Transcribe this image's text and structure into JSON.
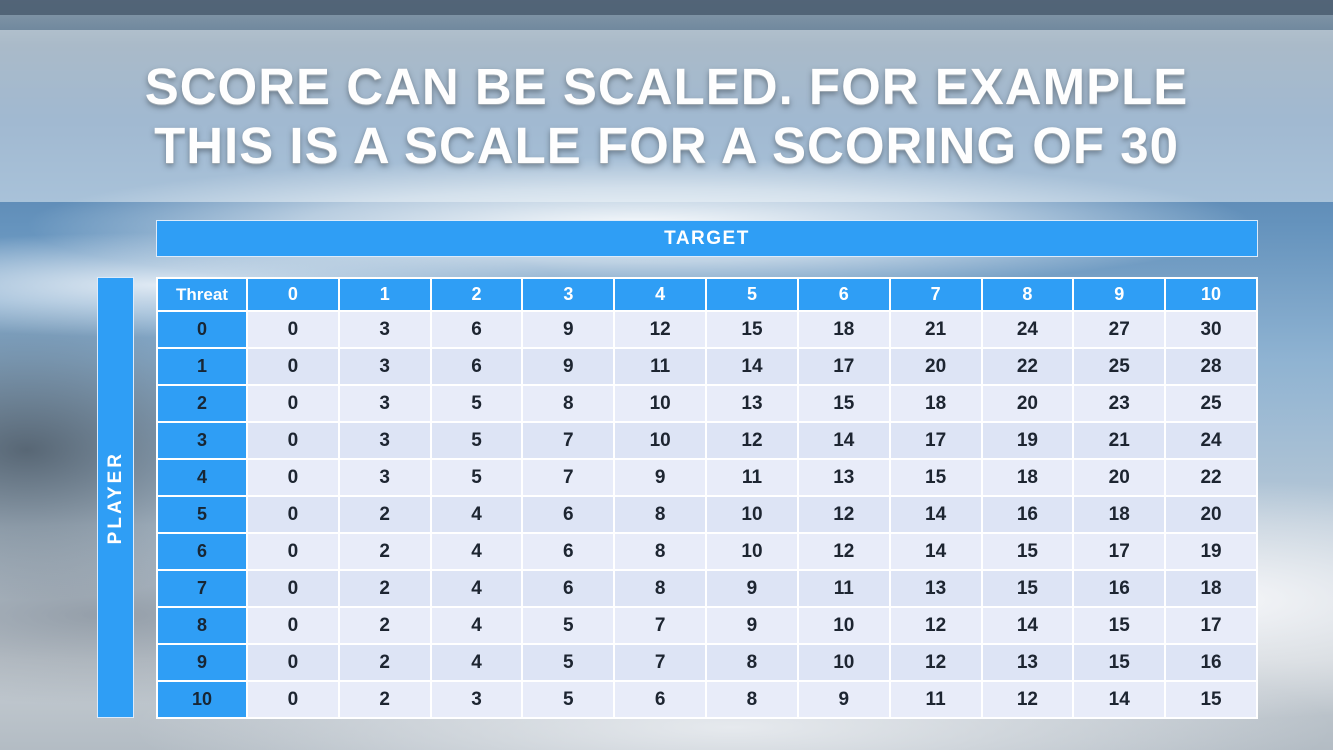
{
  "slide": {
    "title_line1": "SCORE CAN BE SCALED. FOR EXAMPLE",
    "title_line2": "THIS IS A SCALE FOR A SCORING OF 30"
  },
  "table": {
    "target_label": "TARGET",
    "player_label": "PLAYER",
    "corner_label": "Threat",
    "column_headers": [
      "0",
      "1",
      "2",
      "3",
      "4",
      "5",
      "6",
      "7",
      "8",
      "9",
      "10"
    ],
    "rows": [
      {
        "label": "0",
        "values": [
          "0",
          "3",
          "6",
          "9",
          "12",
          "15",
          "18",
          "21",
          "24",
          "27",
          "30"
        ]
      },
      {
        "label": "1",
        "values": [
          "0",
          "3",
          "6",
          "9",
          "11",
          "14",
          "17",
          "20",
          "22",
          "25",
          "28"
        ]
      },
      {
        "label": "2",
        "values": [
          "0",
          "3",
          "5",
          "8",
          "10",
          "13",
          "15",
          "18",
          "20",
          "23",
          "25"
        ]
      },
      {
        "label": "3",
        "values": [
          "0",
          "3",
          "5",
          "7",
          "10",
          "12",
          "14",
          "17",
          "19",
          "21",
          "24"
        ]
      },
      {
        "label": "4",
        "values": [
          "0",
          "3",
          "5",
          "7",
          "9",
          "11",
          "13",
          "15",
          "18",
          "20",
          "22"
        ]
      },
      {
        "label": "5",
        "values": [
          "0",
          "2",
          "4",
          "6",
          "8",
          "10",
          "12",
          "14",
          "16",
          "18",
          "20"
        ]
      },
      {
        "label": "6",
        "values": [
          "0",
          "2",
          "4",
          "6",
          "8",
          "10",
          "12",
          "14",
          "15",
          "17",
          "19"
        ]
      },
      {
        "label": "7",
        "values": [
          "0",
          "2",
          "4",
          "6",
          "8",
          "9",
          "11",
          "13",
          "15",
          "16",
          "18"
        ]
      },
      {
        "label": "8",
        "values": [
          "0",
          "2",
          "4",
          "5",
          "7",
          "9",
          "10",
          "12",
          "14",
          "15",
          "17"
        ]
      },
      {
        "label": "9",
        "values": [
          "0",
          "2",
          "4",
          "5",
          "7",
          "8",
          "10",
          "12",
          "13",
          "15",
          "16"
        ]
      },
      {
        "label": "10",
        "values": [
          "0",
          "2",
          "3",
          "5",
          "6",
          "8",
          "9",
          "11",
          "12",
          "14",
          "15"
        ]
      }
    ]
  },
  "colors": {
    "accent_blue": "#2f9ef5",
    "row_light": "#e8ecf9",
    "row_dark": "#dde4f5",
    "top_strip": "#4d6073"
  }
}
